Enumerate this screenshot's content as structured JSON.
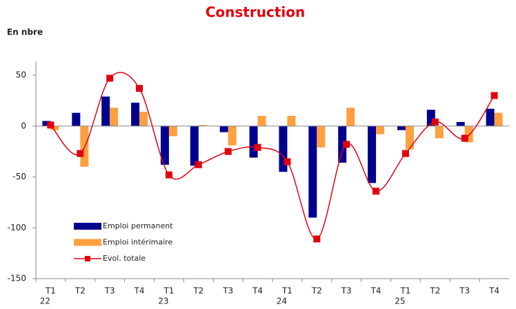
{
  "chart_data": {
    "type": "bar-line",
    "title": "Construction",
    "y_label": "En nbre",
    "categories": [
      [
        "T1",
        "22"
      ],
      [
        "T2"
      ],
      [
        "T3"
      ],
      [
        "T4"
      ],
      [
        "T1",
        "23"
      ],
      [
        "T2"
      ],
      [
        "T3"
      ],
      [
        "T4"
      ],
      [
        "T1",
        "24"
      ],
      [
        "T2"
      ],
      [
        "T3"
      ],
      [
        "T4"
      ],
      [
        "T1",
        "25"
      ],
      [
        "T2"
      ],
      [
        "T3"
      ],
      [
        "T4"
      ]
    ],
    "series": [
      {
        "name": "Emploi permanent",
        "kind": "bar",
        "color": "#00008f",
        "values": [
          5,
          13,
          29,
          23,
          -38,
          -39,
          -6,
          -31,
          -45,
          -90,
          -36,
          -56,
          -4,
          16,
          4,
          17
        ]
      },
      {
        "name": "Emploi intérimaire",
        "kind": "bar",
        "color": "#ffa040",
        "values": [
          -4,
          -40,
          18,
          14,
          -10,
          1,
          -19,
          10,
          10,
          -21,
          18,
          -8,
          -23,
          -12,
          -16,
          13
        ]
      },
      {
        "name": "Evol. totale",
        "kind": "line",
        "color": "#e1000f",
        "values": [
          1,
          -27,
          47,
          37,
          -48,
          -38,
          -25,
          -21,
          -35,
          -111,
          -18,
          -64,
          -27,
          4,
          -12,
          30
        ]
      }
    ],
    "ylim": [
      -150,
      50
    ],
    "yticks": [
      -150,
      -100,
      -50,
      0,
      50
    ],
    "grid": false
  }
}
